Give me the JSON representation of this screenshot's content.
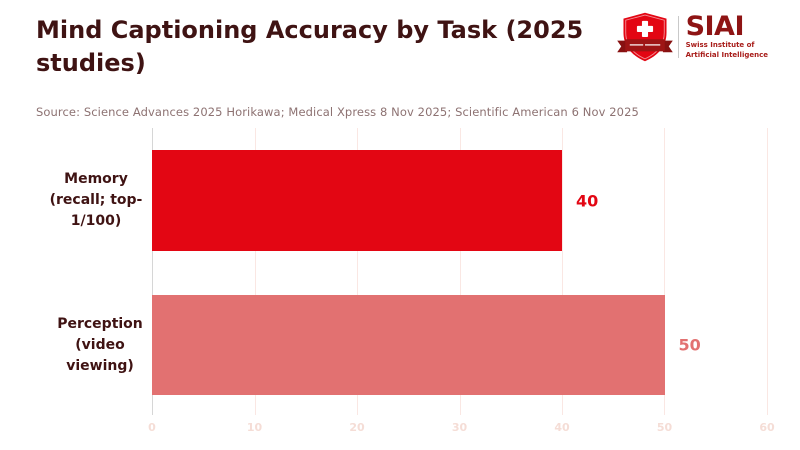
{
  "header": {
    "title": "Mind Captioning Accuracy by Task (2025 studies)",
    "logo": {
      "acronym": "SIAI",
      "subtitle_line1": "Swiss Institute of",
      "subtitle_line2": "Artificial Intelligence"
    }
  },
  "source_line": "Source: Science Advances 2025 Horikawa; Medical Xpress 8 Nov 2025; Scientific American 6 Nov 2025",
  "chart_data": {
    "type": "bar",
    "orientation": "horizontal",
    "title": "Mind Captioning Accuracy by Task (2025 studies)",
    "categories": [
      "Memory (recall; top-1/100)",
      "Perception (video viewing)"
    ],
    "category_lines": [
      [
        "Memory",
        "(recall; top-",
        "1/100)"
      ],
      [
        "Perception",
        "(video",
        "viewing)"
      ]
    ],
    "values": [
      40,
      50
    ],
    "bar_colors": [
      "#e30613",
      "#e27171"
    ],
    "value_label_colors": [
      "#e30613",
      "#e27171"
    ],
    "xlim": [
      0,
      60
    ],
    "xticks": [
      "0",
      "10",
      "20",
      "30",
      "40",
      "50",
      "60"
    ],
    "grid": true,
    "legend_position": "none"
  },
  "colors": {
    "title_text": "#3f1313",
    "source_text": "#8d7272",
    "grid_line": "#fae7e3",
    "zero_line": "#d6d6d6",
    "tick_label": "#f5ddd6",
    "logo_acronym": "#8e1414",
    "logo_subtitle": "#a81d1a",
    "swiss_red": "#e30613",
    "banner_dark_red": "#9e1515"
  }
}
